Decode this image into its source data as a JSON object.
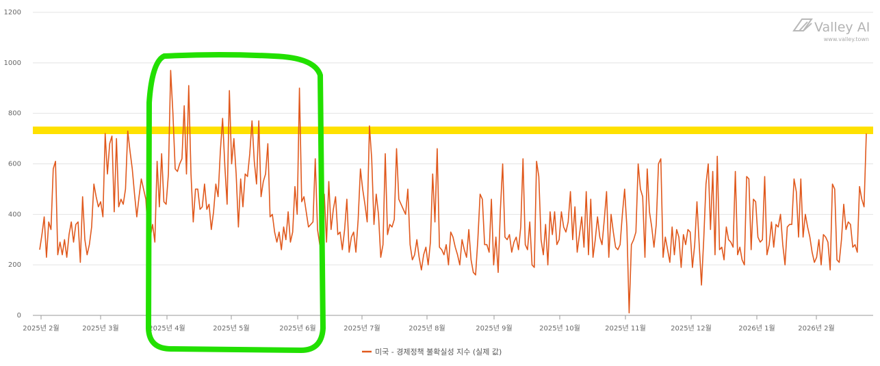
{
  "chart_data": {
    "type": "line",
    "title": "",
    "xlabel": "",
    "ylabel": "",
    "ylim": [
      0,
      1200
    ],
    "yticks": [
      "0",
      "200",
      "400",
      "600",
      "800",
      "1000",
      "1200"
    ],
    "xtick_labels": [
      "2025년 2월",
      "2025년 3월",
      "2025년 4월",
      "2025년 5월",
      "2025년 6월",
      "2025년 7월",
      "2025년 8월",
      "2025년 9월",
      "2025년 10월",
      "2025년 11월",
      "2025년 12월",
      "2026년 1월",
      "2026년 2월"
    ],
    "grid": true,
    "legend_position": "bottom",
    "series": [
      {
        "name": "미국 - 경제정책 불확실성 지수 (실제 값)",
        "color": "#e0581c",
        "values": [
          260,
          320,
          390,
          230,
          370,
          340,
          580,
          610,
          240,
          290,
          240,
          300,
          230,
          320,
          370,
          290,
          360,
          370,
          210,
          470,
          300,
          240,
          280,
          350,
          520,
          470,
          430,
          450,
          390,
          720,
          560,
          680,
          710,
          410,
          700,
          430,
          460,
          440,
          500,
          730,
          650,
          580,
          480,
          390,
          470,
          540,
          500,
          460,
          320,
          310,
          360,
          290,
          610,
          430,
          640,
          450,
          440,
          560,
          970,
          800,
          580,
          570,
          600,
          620,
          830,
          560,
          910,
          560,
          370,
          500,
          500,
          420,
          430,
          520,
          420,
          440,
          340,
          410,
          520,
          470,
          650,
          780,
          590,
          440,
          890,
          600,
          700,
          560,
          350,
          540,
          430,
          560,
          550,
          640,
          770,
          610,
          520,
          770,
          470,
          530,
          560,
          680,
          390,
          400,
          330,
          290,
          330,
          260,
          350,
          300,
          410,
          290,
          330,
          510,
          400,
          900,
          450,
          470,
          410,
          350,
          360,
          370,
          620,
          340,
          280,
          290,
          480,
          290,
          530,
          340,
          420,
          470,
          320,
          330,
          260,
          340,
          460,
          250,
          310,
          330,
          250,
          380,
          580,
          500,
          440,
          370,
          750,
          620,
          360,
          480,
          400,
          230,
          280,
          640,
          320,
          360,
          350,
          380,
          660,
          460,
          440,
          420,
          400,
          500,
          280,
          220,
          240,
          300,
          230,
          180,
          240,
          270,
          200,
          290,
          560,
          370,
          660,
          270,
          260,
          240,
          280,
          200,
          330,
          310,
          270,
          240,
          200,
          300,
          260,
          230,
          340,
          220,
          170,
          160,
          300,
          480,
          460,
          280,
          280,
          250,
          460,
          200,
          310,
          170,
          420,
          600,
          310,
          300,
          320,
          250,
          290,
          310,
          260,
          350,
          620,
          280,
          260,
          370,
          200,
          190,
          610,
          550,
          300,
          240,
          360,
          200,
          410,
          320,
          410,
          280,
          300,
          410,
          350,
          330,
          370,
          490,
          300,
          430,
          250,
          320,
          390,
          270,
          490,
          240,
          460,
          230,
          300,
          390,
          310,
          280,
          380,
          490,
          230,
          400,
          330,
          270,
          260,
          280,
          400,
          500,
          350,
          10,
          280,
          300,
          330,
          600,
          500,
          470,
          230,
          580,
          410,
          350,
          270,
          360,
          600,
          620,
          230,
          310,
          260,
          210,
          350,
          240,
          340,
          310,
          190,
          320,
          280,
          340,
          330,
          190,
          280,
          450,
          280,
          120,
          300,
          520,
          600,
          340,
          570,
          240,
          630,
          260,
          270,
          220,
          350,
          300,
          290,
          270,
          570,
          240,
          270,
          220,
          200,
          550,
          540,
          260,
          460,
          450,
          310,
          290,
          300,
          550,
          240,
          280,
          370,
          270,
          360,
          350,
          400,
          280,
          200,
          350,
          360,
          360,
          540,
          490,
          310,
          540,
          310,
          400,
          350,
          310,
          250,
          210,
          230,
          300,
          200,
          320,
          310,
          290,
          180,
          520,
          500,
          220,
          210,
          300,
          440,
          340,
          370,
          360,
          270,
          280,
          250,
          510,
          460,
          430,
          720
        ]
      }
    ],
    "annotations": {
      "highlight_band_value": [
        720,
        750
      ],
      "highlight_box_period": [
        "2025년 4월",
        "2025년 6월"
      ]
    }
  },
  "watermark": {
    "brand": "Valley AI",
    "url": "www.valley.town"
  }
}
